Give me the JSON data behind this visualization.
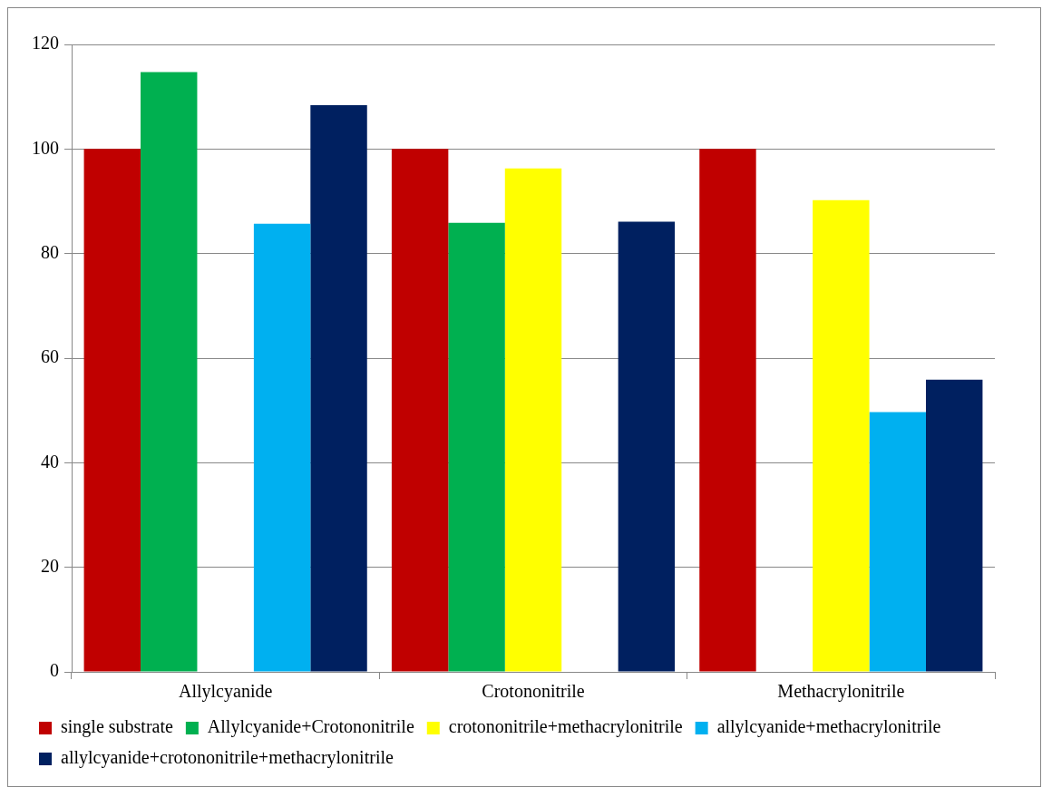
{
  "chart_data": {
    "type": "bar",
    "categories": [
      "Allylcyanide",
      "Crotononitrile",
      "Methacrylonitrile"
    ],
    "series": [
      {
        "name": "single substrate",
        "color": "#c00000",
        "values": [
          100,
          100,
          100
        ]
      },
      {
        "name": "Allylcyanide+Crotononitrile",
        "color": "#00b050",
        "values": [
          114.7,
          85.9,
          null
        ]
      },
      {
        "name": "crotononitrile+methacrylonitrile",
        "color": "#ffff00",
        "values": [
          null,
          96.3,
          90.2
        ]
      },
      {
        "name": "allylcyanide+methacrylonitrile",
        "color": "#00b0f0",
        "values": [
          85.7,
          null,
          49.7
        ]
      },
      {
        "name": "allylcyanide+crotononitrile+methacrylonitrile",
        "color": "#002060",
        "values": [
          108.4,
          86.1,
          55.9
        ]
      }
    ],
    "ylim": [
      0,
      120
    ],
    "yticks": [
      0,
      20,
      40,
      60,
      80,
      100,
      120
    ],
    "grid": "y",
    "legend": "bottom"
  }
}
